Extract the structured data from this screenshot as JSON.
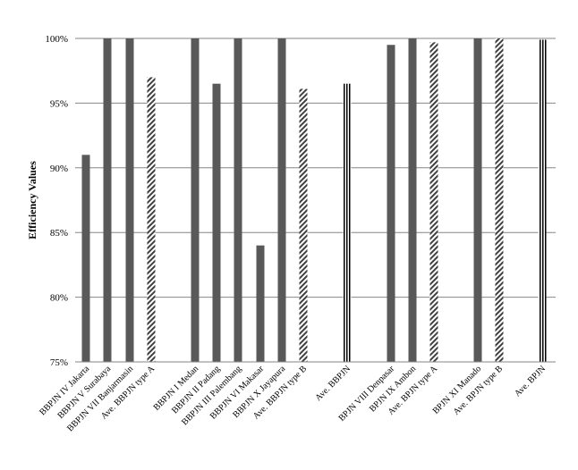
{
  "chart_data": {
    "type": "bar",
    "ylabel": "Efficiency Values",
    "ylim": [
      75,
      100
    ],
    "yticks": [
      75,
      80,
      85,
      90,
      95,
      100
    ],
    "ytick_labels": [
      "75%",
      "80%",
      "85%",
      "90%",
      "95%",
      "100%"
    ],
    "grid": true,
    "categories": [
      "BBPJN IV Jakarta",
      "BBPJN V Surabaya",
      "BBPJN VII Banjarmasin",
      "Ave. BBPJN type A",
      "BBPJN I Medan",
      "BBPJN II Padang",
      "BBPJN III Palembang",
      "BBPJN VI Makasar",
      "BBPJN X Jayapura",
      "Ave. BBPJN type B",
      "Ave. BBPJN",
      "BPJN VIII Denpasar",
      "BPJN IX Ambon",
      "Ave. BPJN type A",
      "BPJN XI Manado",
      "Ave. BPJN type B",
      "Ave. BPJN"
    ],
    "values": [
      91,
      100,
      100,
      97,
      100,
      96.5,
      100,
      84,
      100,
      96.1,
      96.5,
      99.5,
      100,
      99.7,
      100,
      100,
      99.9
    ],
    "patterns": [
      "solid",
      "solid",
      "solid",
      "diagonal",
      "solid",
      "solid",
      "solid",
      "solid",
      "solid",
      "diagonal",
      "vertical",
      "solid",
      "solid",
      "diagonal",
      "solid",
      "diagonal",
      "vertical"
    ],
    "colors": {
      "bar": "#595959",
      "axis": "#868686",
      "grid": "#868686"
    }
  }
}
